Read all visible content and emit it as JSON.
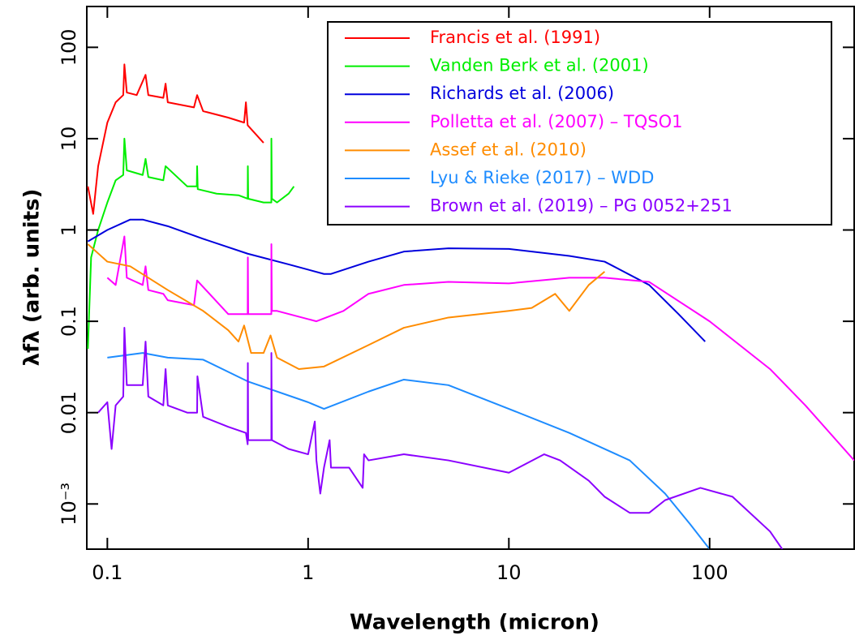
{
  "chart_data": {
    "type": "line",
    "xlabel": "Wavelength (micron)",
    "ylabel": "λfλ (arb. units)",
    "xlog": true,
    "ylog": true,
    "legend": "upper right",
    "xlim": [
      0.079,
      525
    ],
    "ylim": [
      0.00032,
      280
    ],
    "xticks": [
      0.1,
      1,
      10,
      100
    ],
    "yticks": [
      {
        "value": 0.001,
        "label": "10⁻³"
      },
      0.01,
      0.1,
      1,
      10,
      100
    ],
    "series": [
      {
        "name": "Francis et al. (1991)",
        "color": "#ff0000",
        "x": [
          0.08,
          0.085,
          0.09,
          0.1,
          0.11,
          0.12,
          0.1216,
          0.125,
          0.14,
          0.155,
          0.16,
          0.19,
          0.195,
          0.2,
          0.27,
          0.28,
          0.3,
          0.4,
          0.48,
          0.49,
          0.5,
          0.6
        ],
        "values": [
          3,
          1.5,
          5,
          15,
          25,
          30,
          65,
          32,
          30,
          50,
          30,
          28,
          40,
          25,
          22,
          30,
          20,
          17,
          15,
          25,
          14,
          9
        ]
      },
      {
        "name": "Vanden Berk et al. (2001)",
        "color": "#00ee00",
        "x": [
          0.08,
          0.083,
          0.09,
          0.1,
          0.11,
          0.12,
          0.1216,
          0.125,
          0.15,
          0.155,
          0.16,
          0.19,
          0.195,
          0.25,
          0.279,
          0.28,
          0.282,
          0.35,
          0.45,
          0.5,
          0.501,
          0.503,
          0.6,
          0.656,
          0.6563,
          0.66,
          0.7,
          0.8,
          0.85
        ],
        "values": [
          0.05,
          0.5,
          1,
          2,
          3.5,
          4,
          10,
          4.5,
          4,
          6,
          3.8,
          3.5,
          5,
          3,
          3,
          5,
          2.8,
          2.5,
          2.4,
          2.2,
          5,
          2.2,
          2,
          2,
          10,
          2.2,
          2,
          2.5,
          3
        ]
      },
      {
        "name": "Richards et al. (2006)",
        "color": "#0000dd",
        "x": [
          0.08,
          0.1,
          0.13,
          0.15,
          0.2,
          0.3,
          0.5,
          0.8,
          1.2,
          1.3,
          2,
          3,
          5,
          10,
          20,
          30,
          50,
          70,
          95
        ],
        "values": [
          0.75,
          1,
          1.3,
          1.3,
          1.1,
          0.8,
          0.55,
          0.42,
          0.33,
          0.33,
          0.45,
          0.58,
          0.63,
          0.62,
          0.52,
          0.45,
          0.25,
          0.12,
          0.06
        ]
      },
      {
        "name": "Polletta et al. (2007) – TQSO1",
        "color": "#ff00ff",
        "x": [
          0.1,
          0.11,
          0.1216,
          0.125,
          0.15,
          0.155,
          0.16,
          0.19,
          0.2,
          0.27,
          0.28,
          0.4,
          0.5,
          0.501,
          0.503,
          0.656,
          0.6563,
          0.66,
          0.7,
          1.1,
          1.5,
          2,
          3,
          5,
          10,
          20,
          30,
          50,
          100,
          200,
          300,
          525
        ],
        "values": [
          0.3,
          0.25,
          0.85,
          0.3,
          0.25,
          0.4,
          0.22,
          0.2,
          0.17,
          0.15,
          0.28,
          0.12,
          0.12,
          0.5,
          0.12,
          0.12,
          0.7,
          0.13,
          0.13,
          0.1,
          0.13,
          0.2,
          0.25,
          0.27,
          0.26,
          0.3,
          0.3,
          0.27,
          0.1,
          0.03,
          0.012,
          0.003
        ]
      },
      {
        "name": "Assef et al. (2010)",
        "color": "#ff8c00",
        "x": [
          0.08,
          0.1,
          0.13,
          0.2,
          0.3,
          0.4,
          0.45,
          0.48,
          0.52,
          0.6,
          0.65,
          0.7,
          0.9,
          1.2,
          2,
          3,
          5,
          10,
          13,
          17,
          20,
          25,
          30
        ],
        "values": [
          0.7,
          0.45,
          0.4,
          0.22,
          0.13,
          0.08,
          0.06,
          0.09,
          0.045,
          0.045,
          0.07,
          0.04,
          0.03,
          0.032,
          0.055,
          0.085,
          0.11,
          0.13,
          0.14,
          0.2,
          0.13,
          0.25,
          0.35
        ]
      },
      {
        "name": "Lyu & Rieke (2017) – WDD",
        "color": "#1e8cff",
        "x": [
          0.1,
          0.15,
          0.2,
          0.3,
          0.5,
          1,
          1.2,
          2,
          3,
          5,
          10,
          20,
          40,
          60,
          80,
          100
        ],
        "values": [
          0.04,
          0.045,
          0.04,
          0.038,
          0.022,
          0.013,
          0.011,
          0.017,
          0.023,
          0.02,
          0.011,
          0.006,
          0.003,
          0.0013,
          0.0006,
          0.00032
        ]
      },
      {
        "name": "Brown et al. (2019) – PG 0052+251",
        "color": "#8b00ff",
        "x": [
          0.09,
          0.1,
          0.105,
          0.11,
          0.12,
          0.1216,
          0.125,
          0.15,
          0.155,
          0.16,
          0.19,
          0.195,
          0.2,
          0.25,
          0.28,
          0.281,
          0.3,
          0.4,
          0.49,
          0.5,
          0.501,
          0.503,
          0.6,
          0.656,
          0.6563,
          0.66,
          0.8,
          1,
          1.08,
          1.1,
          1.15,
          1.2,
          1.28,
          1.3,
          1.6,
          1.87,
          1.9,
          2,
          3,
          5,
          10,
          15,
          18,
          25,
          30,
          40,
          50,
          60,
          90,
          130,
          200,
          230
        ],
        "values": [
          0.01,
          0.013,
          0.004,
          0.012,
          0.015,
          0.085,
          0.02,
          0.02,
          0.06,
          0.015,
          0.012,
          0.03,
          0.012,
          0.01,
          0.01,
          0.025,
          0.009,
          0.007,
          0.006,
          0.0045,
          0.035,
          0.005,
          0.005,
          0.005,
          0.045,
          0.005,
          0.004,
          0.0035,
          0.008,
          0.003,
          0.0013,
          0.0025,
          0.005,
          0.0025,
          0.0025,
          0.0015,
          0.0035,
          0.003,
          0.0035,
          0.003,
          0.0022,
          0.0035,
          0.003,
          0.0018,
          0.0012,
          0.0008,
          0.0008,
          0.0011,
          0.0015,
          0.0012,
          0.0005,
          0.00032
        ]
      }
    ]
  }
}
